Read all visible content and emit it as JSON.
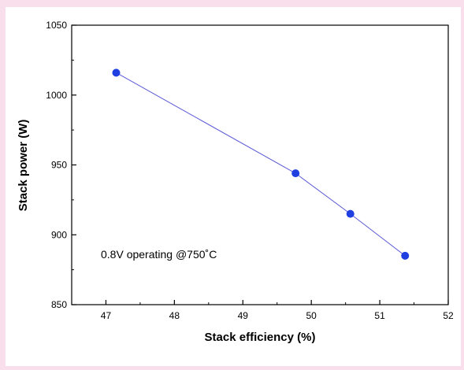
{
  "colors": {
    "background": "#f9dfeb",
    "panel": "#ffffff",
    "line": "#5a5ad6",
    "marker": "#1f3fe0",
    "axis": "#000000"
  },
  "chart_data": {
    "type": "scatter",
    "xlabel": "Stack efficiency (%)",
    "ylabel": "Stack power (W)",
    "xlim": [
      46.5,
      52
    ],
    "ylim": [
      850,
      1050
    ],
    "xticks": [
      "47",
      "48",
      "49",
      "50",
      "51",
      "52"
    ],
    "yticks": [
      "850",
      "900",
      "950",
      "1000",
      "1050"
    ],
    "grid": false,
    "annotation": "0.8V operating @750˚C",
    "series": [
      {
        "x": [
          47.15,
          49.77,
          50.57,
          51.37
        ],
        "y": [
          1016,
          944,
          915,
          885
        ],
        "mode": "lines+markers"
      }
    ]
  }
}
